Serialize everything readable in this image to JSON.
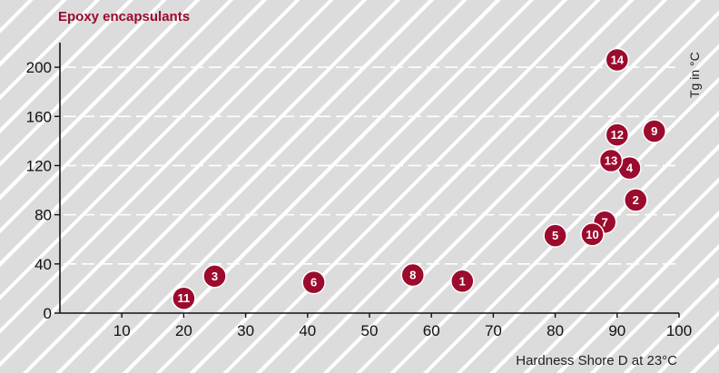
{
  "chart_data": {
    "type": "scatter",
    "title": "Epoxy encapsulants",
    "xlabel": "Hardness Shore D at 23°C",
    "ylabel": "Tg in °C",
    "xlim": [
      0,
      100
    ],
    "ylim": [
      0,
      220
    ],
    "x_ticks": [
      10,
      20,
      30,
      40,
      50,
      60,
      70,
      80,
      90,
      100
    ],
    "y_ticks": [
      0,
      40,
      80,
      120,
      160,
      200
    ],
    "grid": "horizontal dashed",
    "marker_color": "#9b0b2d",
    "points": [
      {
        "label": "1",
        "x": 65,
        "y": 26
      },
      {
        "label": "2",
        "x": 93,
        "y": 92
      },
      {
        "label": "3",
        "x": 25,
        "y": 30
      },
      {
        "label": "4",
        "x": 92,
        "y": 118
      },
      {
        "label": "5",
        "x": 80,
        "y": 63
      },
      {
        "label": "6",
        "x": 41,
        "y": 25
      },
      {
        "label": "7",
        "x": 88,
        "y": 74
      },
      {
        "label": "8",
        "x": 57,
        "y": 31
      },
      {
        "label": "9",
        "x": 96,
        "y": 148
      },
      {
        "label": "10",
        "x": 86,
        "y": 64
      },
      {
        "label": "11",
        "x": 20,
        "y": 12
      },
      {
        "label": "12",
        "x": 90,
        "y": 145
      },
      {
        "label": "13",
        "x": 89,
        "y": 124
      },
      {
        "label": "14",
        "x": 90,
        "y": 206
      }
    ]
  }
}
